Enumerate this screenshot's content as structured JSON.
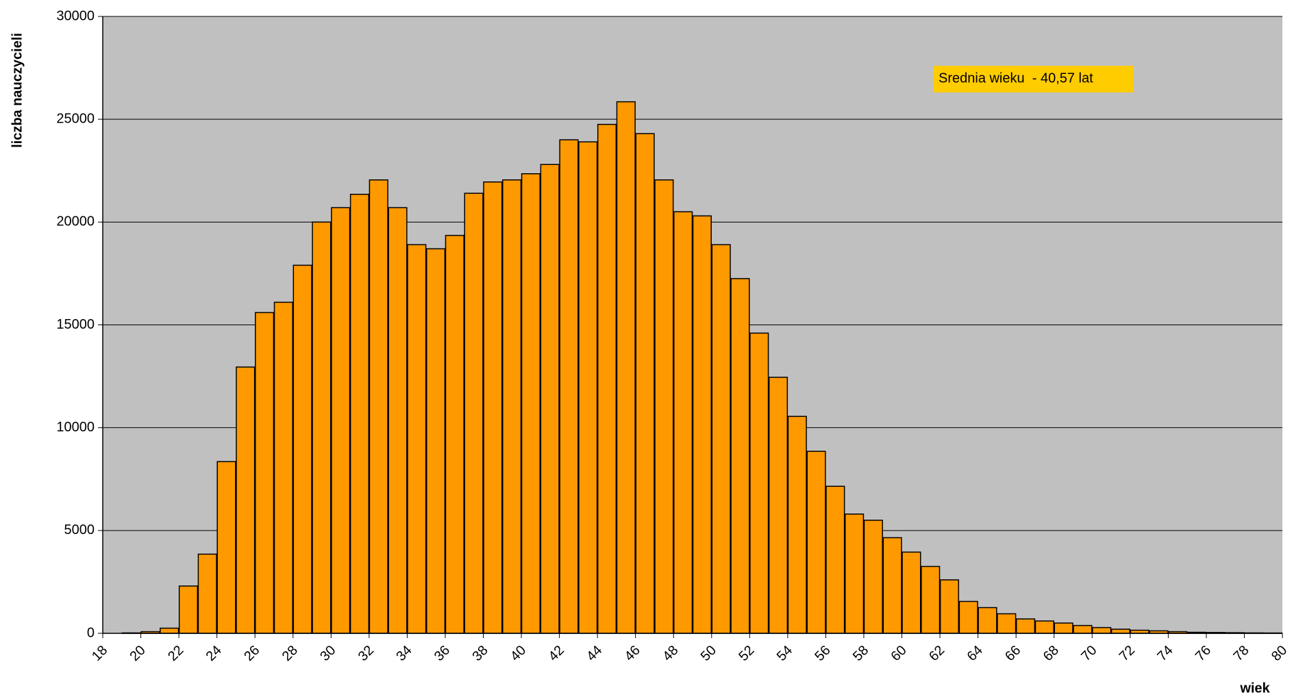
{
  "chart_data": {
    "type": "histogram",
    "xlabel": "wiek",
    "ylabel": "liczba nauczycieli",
    "annotation": "Srednia wieku  - 40,57 lat",
    "bins": [
      18,
      19,
      20,
      21,
      22,
      23,
      24,
      25,
      26,
      27,
      28,
      29,
      30,
      31,
      32,
      33,
      34,
      35,
      36,
      37,
      38,
      39,
      40,
      41,
      42,
      43,
      44,
      45,
      46,
      47,
      48,
      49,
      50,
      51,
      52,
      53,
      54,
      55,
      56,
      57,
      58,
      59,
      60,
      61,
      62,
      63,
      64,
      65,
      66,
      67,
      68,
      69,
      70,
      71,
      72,
      73,
      74,
      75,
      76,
      77,
      78,
      79,
      80
    ],
    "counts": [
      0,
      20,
      80,
      250,
      2300,
      3850,
      8350,
      12950,
      15600,
      16100,
      17900,
      20000,
      20700,
      21350,
      22050,
      20700,
      18900,
      18700,
      19350,
      21400,
      21950,
      22050,
      22350,
      22800,
      24000,
      23900,
      24750,
      25850,
      24300,
      22050,
      20500,
      20300,
      18900,
      17250,
      14600,
      12450,
      10550,
      8850,
      7150,
      5800,
      5500,
      4650,
      3950,
      3250,
      2600,
      1550,
      1250,
      950,
      700,
      600,
      500,
      380,
      280,
      200,
      150,
      120,
      80,
      50,
      40,
      30,
      20,
      15
    ],
    "color": "#ff9900",
    "edgecolor": "#000000",
    "background": "#c0c0c0",
    "annotation_color": "#ffcc00",
    "xlim": [
      18,
      80
    ],
    "xticks": [
      18,
      20,
      22,
      24,
      26,
      28,
      30,
      32,
      34,
      36,
      38,
      40,
      42,
      44,
      46,
      48,
      50,
      52,
      54,
      56,
      58,
      60,
      62,
      64,
      66,
      68,
      70,
      72,
      74,
      76,
      78,
      80
    ],
    "ylim": [
      0,
      30000
    ],
    "yticks": [
      0,
      5000,
      10000,
      15000,
      20000,
      25000,
      30000
    ],
    "grid": true
  }
}
